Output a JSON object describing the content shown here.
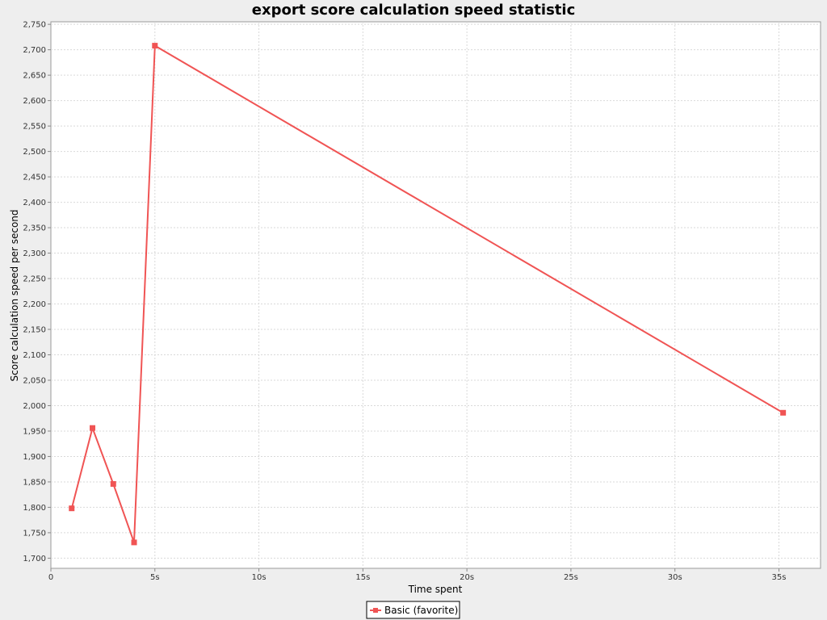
{
  "chart_data": {
    "type": "line",
    "title": "export score calculation speed statistic",
    "xlabel": "Time spent",
    "ylabel": "Score calculation speed per second",
    "xlim": [
      0,
      37
    ],
    "ylim": [
      1680,
      2755
    ],
    "x_ticks": [
      {
        "value": 0,
        "label": "0"
      },
      {
        "value": 5,
        "label": "5s"
      },
      {
        "value": 10,
        "label": "10s"
      },
      {
        "value": 15,
        "label": "15s"
      },
      {
        "value": 20,
        "label": "20s"
      },
      {
        "value": 25,
        "label": "25s"
      },
      {
        "value": 30,
        "label": "30s"
      },
      {
        "value": 35,
        "label": "35s"
      }
    ],
    "y_ticks": [
      {
        "value": 1700,
        "label": "1,700"
      },
      {
        "value": 1750,
        "label": "1,750"
      },
      {
        "value": 1800,
        "label": "1,800"
      },
      {
        "value": 1850,
        "label": "1,850"
      },
      {
        "value": 1900,
        "label": "1,900"
      },
      {
        "value": 1950,
        "label": "1,950"
      },
      {
        "value": 2000,
        "label": "2,000"
      },
      {
        "value": 2050,
        "label": "2,050"
      },
      {
        "value": 2100,
        "label": "2,100"
      },
      {
        "value": 2150,
        "label": "2,150"
      },
      {
        "value": 2200,
        "label": "2,200"
      },
      {
        "value": 2250,
        "label": "2,250"
      },
      {
        "value": 2300,
        "label": "2,300"
      },
      {
        "value": 2350,
        "label": "2,350"
      },
      {
        "value": 2400,
        "label": "2,400"
      },
      {
        "value": 2450,
        "label": "2,450"
      },
      {
        "value": 2500,
        "label": "2,500"
      },
      {
        "value": 2550,
        "label": "2,550"
      },
      {
        "value": 2600,
        "label": "2,600"
      },
      {
        "value": 2650,
        "label": "2,650"
      },
      {
        "value": 2700,
        "label": "2,700"
      },
      {
        "value": 2750,
        "label": "2,750"
      }
    ],
    "grid": true,
    "legend_position": "bottom-center",
    "series": [
      {
        "name": "Basic (favorite)",
        "color": "#f05454",
        "marker": "square",
        "x": [
          1,
          2,
          3,
          4,
          5,
          35.2
        ],
        "y": [
          1798,
          1956,
          1846,
          1731,
          2708,
          1986
        ]
      }
    ]
  }
}
